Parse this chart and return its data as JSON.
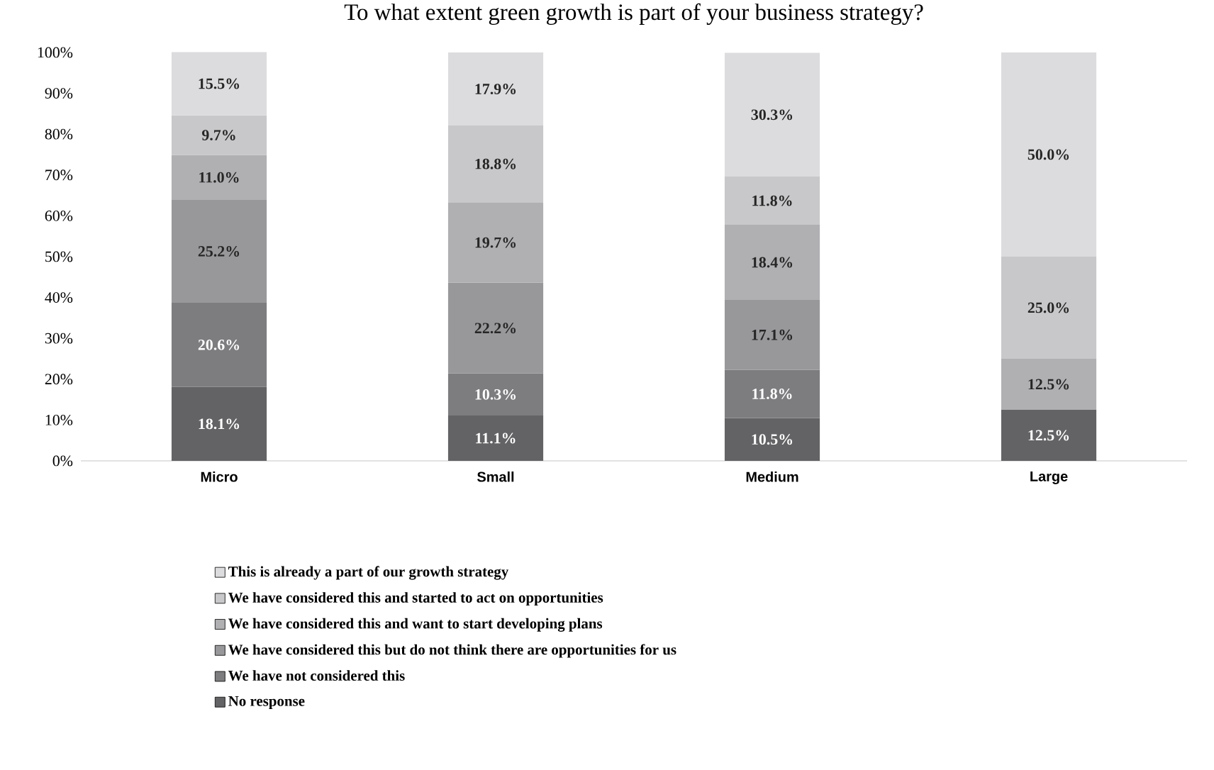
{
  "chart_data": {
    "type": "bar",
    "stacked": true,
    "title": "To what extent green growth is part of your business strategy?",
    "categories": [
      "Micro",
      "Small",
      "Medium",
      "Large"
    ],
    "series": [
      {
        "name": "No response",
        "color": "#636365",
        "values": [
          18.1,
          11.1,
          10.5,
          12.5
        ],
        "value_labels": [
          "18.1%",
          "11.1%",
          "10.5%",
          "12.5%"
        ]
      },
      {
        "name": "We have not considered this",
        "color": "#7d7d80",
        "values": [
          20.6,
          10.3,
          11.8,
          null
        ],
        "value_labels": [
          "20.6%",
          "10.3%",
          "11.8%",
          null
        ]
      },
      {
        "name": "We have considered this but do not think there are opportunities for us",
        "color": "#98989b",
        "values": [
          25.2,
          22.2,
          17.1,
          null
        ],
        "value_labels": [
          "25.2%",
          "22.2%",
          "17.1%",
          null
        ]
      },
      {
        "name": "We have considered this and want to start developing plans",
        "color": "#b0b0b3",
        "values": [
          11.0,
          19.7,
          18.4,
          12.5
        ],
        "value_labels": [
          "11.0%",
          "19.7%",
          "18.4%",
          "12.5%"
        ]
      },
      {
        "name": "We have considered this and started to act on opportunities",
        "color": "#c8c8ca",
        "values": [
          9.7,
          18.8,
          11.8,
          25.0
        ],
        "value_labels": [
          "9.7%",
          "18.8%",
          "11.8%",
          "25.0%"
        ]
      },
      {
        "name": "This is already a part of our growth strategy",
        "color": "#dcdcde",
        "values": [
          15.5,
          17.9,
          30.3,
          50.0
        ],
        "value_labels": [
          "15.5%",
          "17.9%",
          "30.3%",
          "50.0%"
        ]
      }
    ],
    "ylim": [
      0,
      100
    ],
    "yticks": [
      {
        "value": 0,
        "label": "0%"
      },
      {
        "value": 10,
        "label": "10%"
      },
      {
        "value": 20,
        "label": "20%"
      },
      {
        "value": 30,
        "label": "30%"
      },
      {
        "value": 40,
        "label": "40%"
      },
      {
        "value": 50,
        "label": "50%"
      },
      {
        "value": 60,
        "label": "60%"
      },
      {
        "value": 70,
        "label": "70%"
      },
      {
        "value": 80,
        "label": "80%"
      },
      {
        "value": 90,
        "label": "90%"
      },
      {
        "value": 100,
        "label": "100%"
      }
    ],
    "grid": false,
    "legend": "bottom"
  }
}
